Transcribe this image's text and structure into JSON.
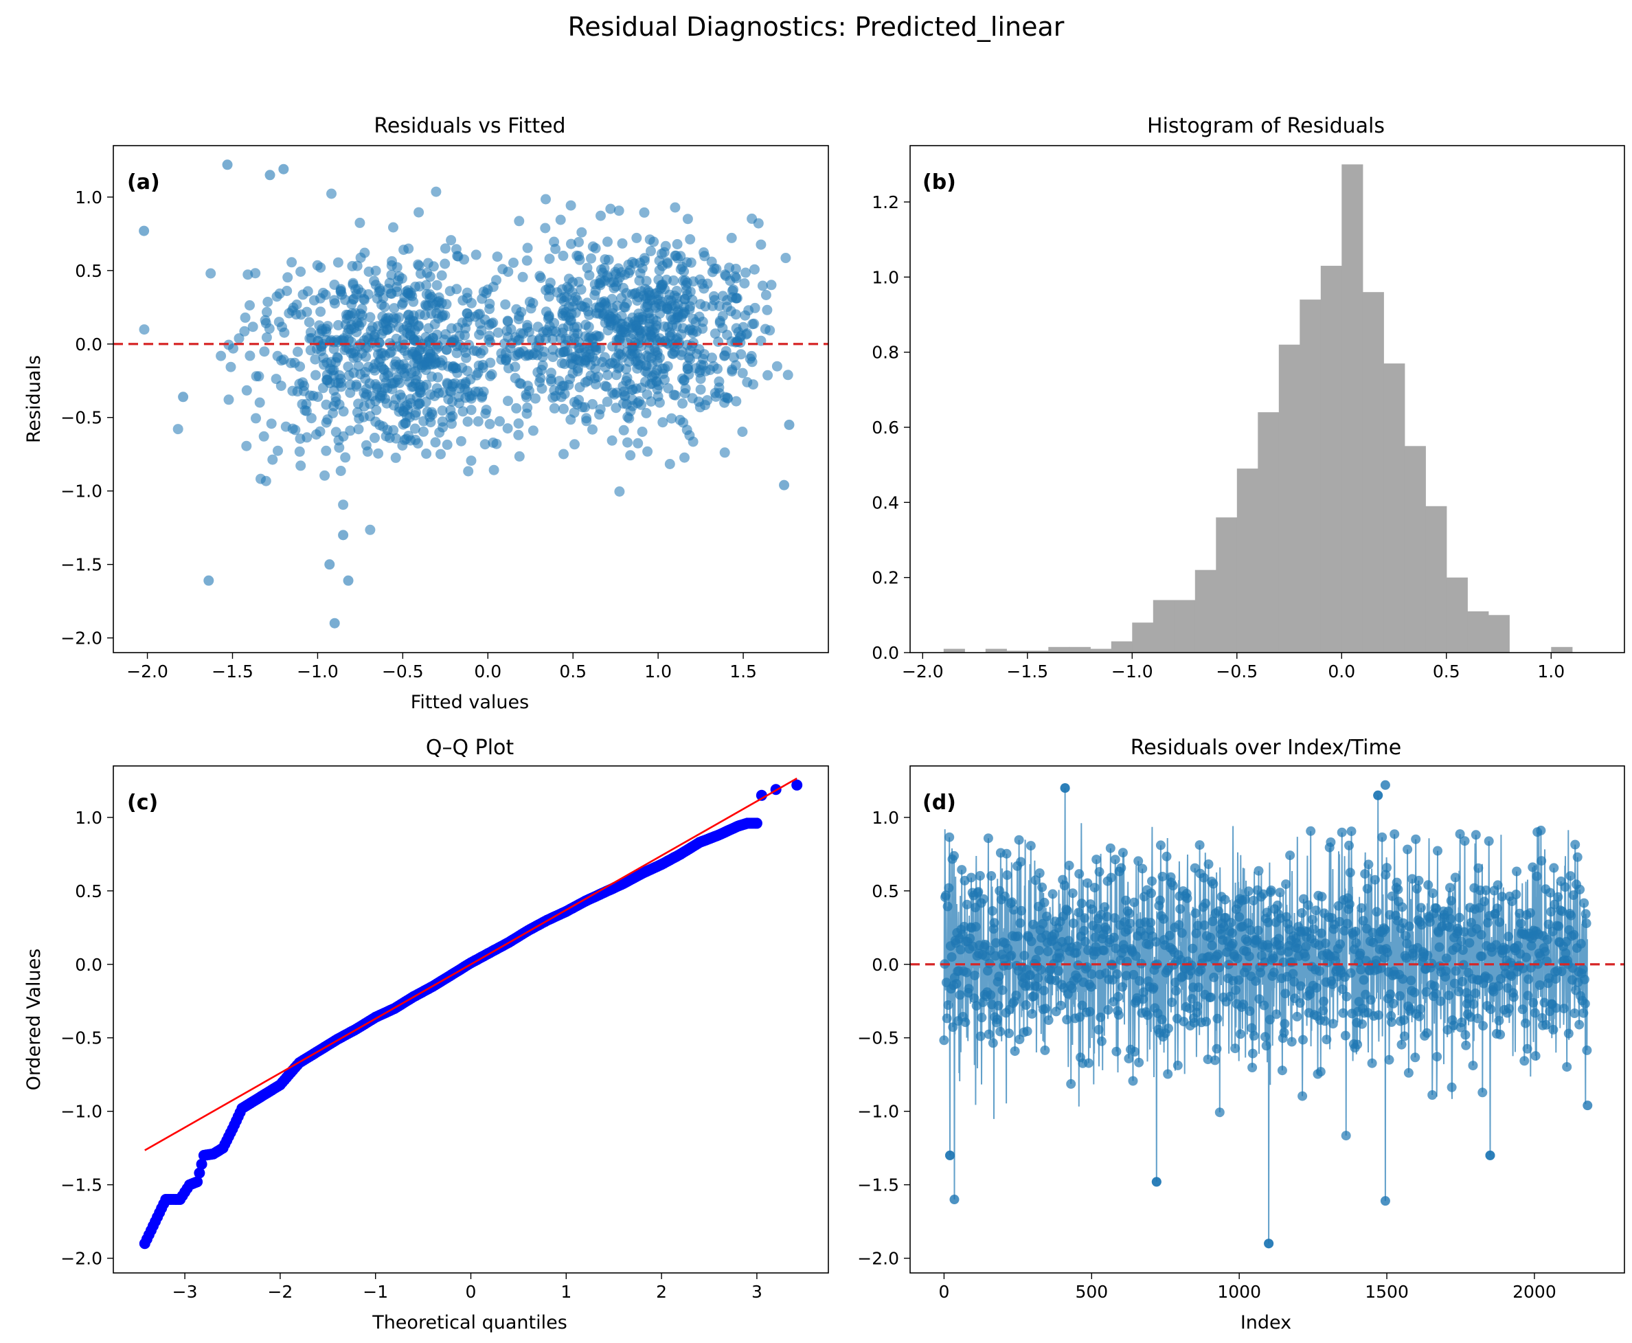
{
  "figure": {
    "suptitle": "Residual Diagnostics: Predicted_linear",
    "colors": {
      "scatter": "#1f77b4",
      "hist": "#a9a9a9",
      "refline": "#d62728",
      "qq_points": "#0000ff",
      "qq_line": "#ff0000"
    }
  },
  "chart_data": [
    {
      "id": "a",
      "panel_label": "(a)",
      "type": "scatter",
      "title": "Residuals vs Fitted",
      "xlabel": "Fitted values",
      "ylabel": "Residuals",
      "xlim": [
        -2.2,
        2.0
      ],
      "ylim": [
        -2.1,
        1.35
      ],
      "xticks": [
        -2.0,
        -1.5,
        -1.0,
        -0.5,
        0.0,
        0.5,
        1.0,
        1.5
      ],
      "xtick_labels": [
        "−2.0",
        "−1.5",
        "−1.0",
        "−0.5",
        "0.0",
        "0.5",
        "1.0",
        "1.5"
      ],
      "yticks": [
        -2.0,
        -1.5,
        -1.0,
        -0.5,
        0.0,
        0.5,
        1.0
      ],
      "ytick_labels": [
        "−2.0",
        "−1.5",
        "−1.0",
        "−0.5",
        "0.0",
        "0.5",
        "1.0"
      ],
      "hline": 0.0,
      "n_points": 2180,
      "x_range": [
        -2.02,
        1.77
      ],
      "y_range": [
        -1.9,
        1.22
      ],
      "notable_points": [
        {
          "x": -2.02,
          "y": 0.77
        },
        {
          "x": -1.53,
          "y": 1.22
        },
        {
          "x": -1.28,
          "y": 1.15
        },
        {
          "x": -1.2,
          "y": 1.19
        },
        {
          "x": -0.9,
          "y": -1.9
        },
        {
          "x": -1.64,
          "y": -1.61
        },
        {
          "x": -0.82,
          "y": -1.61
        },
        {
          "x": -0.93,
          "y": -1.5
        },
        {
          "x": -0.85,
          "y": -1.3
        },
        {
          "x": 1.74,
          "y": -0.96
        },
        {
          "x": 1.77,
          "y": -0.55
        },
        {
          "x": -1.79,
          "y": -0.36
        }
      ]
    },
    {
      "id": "b",
      "panel_label": "(b)",
      "type": "bar",
      "title": "Histogram of Residuals",
      "xlim": [
        -2.06,
        1.35
      ],
      "ylim": [
        0,
        1.35
      ],
      "xticks": [
        -2.0,
        -1.5,
        -1.0,
        -0.5,
        0.0,
        0.5,
        1.0
      ],
      "xtick_labels": [
        "−2.0",
        "−1.5",
        "−1.0",
        "−0.5",
        "0.0",
        "0.5",
        "1.0"
      ],
      "yticks": [
        0.0,
        0.2,
        0.4,
        0.6,
        0.8,
        1.0,
        1.2
      ],
      "ytick_labels": [
        "0.0",
        "0.2",
        "0.4",
        "0.6",
        "0.8",
        "1.0",
        "1.2"
      ],
      "bin_start": -1.9,
      "bin_width": 0.1,
      "densities": [
        0.01,
        0.0,
        0.01,
        0.005,
        0.005,
        0.015,
        0.015,
        0.01,
        0.03,
        0.08,
        0.14,
        0.14,
        0.22,
        0.36,
        0.49,
        0.64,
        0.82,
        0.94,
        1.03,
        1.3,
        0.96,
        0.77,
        0.55,
        0.39,
        0.2,
        0.11,
        0.1,
        0.0,
        0.0,
        0.015
      ]
    },
    {
      "id": "c",
      "panel_label": "(c)",
      "type": "scatter",
      "title": "Q–Q Plot",
      "xlabel": "Theoretical quantiles",
      "ylabel": "Ordered Values",
      "xlim": [
        -3.75,
        3.75
      ],
      "ylim": [
        -2.1,
        1.35
      ],
      "xticks": [
        -3,
        -2,
        -1,
        0,
        1,
        2,
        3
      ],
      "xtick_labels": [
        "−3",
        "−2",
        "−1",
        "0",
        "1",
        "2",
        "3"
      ],
      "yticks": [
        -2.0,
        -1.5,
        -1.0,
        -0.5,
        0.0,
        0.5,
        1.0
      ],
      "ytick_labels": [
        "−2.0",
        "−1.5",
        "−1.0",
        "−0.5",
        "0.0",
        "0.5",
        "1.0"
      ],
      "fit_line": {
        "intercept": 0.0,
        "slope": 0.37,
        "x_range": [
          -3.42,
          3.42
        ]
      },
      "quantile_curve": [
        [
          -3.42,
          -1.9
        ],
        [
          -3.2,
          -1.6
        ],
        [
          -3.05,
          -1.6
        ],
        [
          -2.95,
          -1.5
        ],
        [
          -2.87,
          -1.48
        ],
        [
          -2.8,
          -1.3
        ],
        [
          -2.7,
          -1.29
        ],
        [
          -2.6,
          -1.25
        ],
        [
          -2.5,
          -1.12
        ],
        [
          -2.4,
          -0.98
        ],
        [
          -2.2,
          -0.9
        ],
        [
          -2.0,
          -0.82
        ],
        [
          -1.8,
          -0.67
        ],
        [
          -1.6,
          -0.59
        ],
        [
          -1.4,
          -0.51
        ],
        [
          -1.2,
          -0.44
        ],
        [
          -1.0,
          -0.36
        ],
        [
          -0.8,
          -0.3
        ],
        [
          -0.6,
          -0.22
        ],
        [
          -0.4,
          -0.15
        ],
        [
          -0.2,
          -0.07
        ],
        [
          0.0,
          0.01
        ],
        [
          0.2,
          0.08
        ],
        [
          0.4,
          0.15
        ],
        [
          0.6,
          0.23
        ],
        [
          0.8,
          0.3
        ],
        [
          1.0,
          0.36
        ],
        [
          1.2,
          0.43
        ],
        [
          1.4,
          0.49
        ],
        [
          1.6,
          0.55
        ],
        [
          1.8,
          0.62
        ],
        [
          2.0,
          0.68
        ],
        [
          2.2,
          0.75
        ],
        [
          2.4,
          0.83
        ],
        [
          2.6,
          0.88
        ],
        [
          2.8,
          0.94
        ],
        [
          2.9,
          0.96
        ],
        [
          3.0,
          0.96
        ]
      ],
      "extreme_points": [
        {
          "x": 3.05,
          "y": 1.15
        },
        {
          "x": 3.2,
          "y": 1.19
        },
        {
          "x": 3.42,
          "y": 1.22
        }
      ]
    },
    {
      "id": "d",
      "panel_label": "(d)",
      "type": "line",
      "title": "Residuals over Index/Time",
      "xlabel": "Index",
      "xlim": [
        -115,
        2305
      ],
      "ylim": [
        -2.1,
        1.35
      ],
      "xticks": [
        0,
        500,
        1000,
        1500,
        2000
      ],
      "xtick_labels": [
        "0",
        "500",
        "1000",
        "1500",
        "2000"
      ],
      "yticks": [
        -2.0,
        -1.5,
        -1.0,
        -0.5,
        0.0,
        0.5,
        1.0
      ],
      "ytick_labels": [
        "−2.0",
        "−1.5",
        "−1.0",
        "−0.5",
        "0.0",
        "0.5",
        "1.0"
      ],
      "hline": 0.0,
      "n_points": 2180,
      "notable_points": [
        {
          "x": 20,
          "y": -1.3
        },
        {
          "x": 35,
          "y": -1.6
        },
        {
          "x": 410,
          "y": 1.2
        },
        {
          "x": 720,
          "y": -1.48
        },
        {
          "x": 1100,
          "y": -1.9
        },
        {
          "x": 1470,
          "y": 1.15
        },
        {
          "x": 1495,
          "y": 1.22
        },
        {
          "x": 1495,
          "y": -1.61
        },
        {
          "x": 1850,
          "y": -1.3
        },
        {
          "x": 2180,
          "y": -0.96
        }
      ]
    }
  ]
}
